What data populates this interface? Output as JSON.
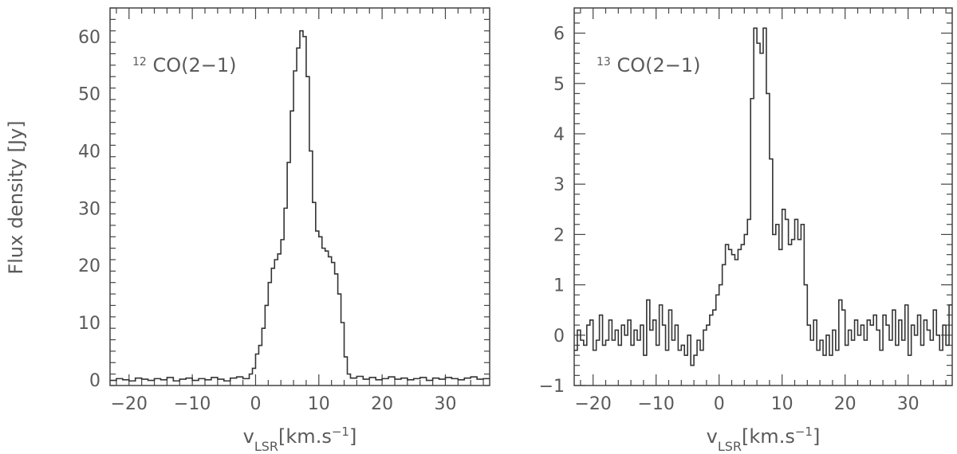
{
  "chart_data": [
    {
      "type": "line",
      "step": true,
      "label": "CO(2−1)",
      "label_sup": "12",
      "ylabel": "Flux density [Jy]",
      "xlabel_main": "v",
      "xlabel_sub": "LSR",
      "xlabel_units": "[km.s",
      "xlabel_units_sup": "−1",
      "xlabel_units_end": "]",
      "xlim": [
        -23,
        37
      ],
      "ylim": [
        -1,
        65
      ],
      "xticks": [
        -20,
        -10,
        0,
        10,
        20,
        30
      ],
      "xtick_labels": [
        "−20",
        "−10",
        "0",
        "10",
        "20",
        "30"
      ],
      "yticks": [
        0,
        10,
        20,
        30,
        40,
        50,
        60
      ],
      "ytick_labels": [
        "0",
        "10",
        "20",
        "30",
        "40",
        "50",
        "60"
      ],
      "series": [
        {
          "x": [
            -23,
            -22,
            -21,
            -20,
            -19,
            -18,
            -17,
            -16,
            -15,
            -14,
            -13,
            -12,
            -11,
            -10,
            -9,
            -8,
            -7,
            -6,
            -5,
            -4,
            -3,
            -2,
            -1,
            -0.5,
            0,
            0.5,
            1,
            1.5,
            2,
            2.5,
            3,
            3.5,
            4,
            4.5,
            5,
            5.5,
            6,
            6.5,
            7,
            7.5,
            8,
            8.5,
            9,
            9.5,
            10,
            10.5,
            11,
            11.5,
            12,
            12.5,
            13,
            13.5,
            14,
            14.5,
            15,
            16,
            17,
            18,
            19,
            20,
            21,
            22,
            23,
            24,
            25,
            26,
            27,
            28,
            29,
            30,
            31,
            32,
            33,
            34,
            35,
            36
          ],
          "y": [
            -0.1,
            0.2,
            0.0,
            -0.2,
            0.3,
            0.1,
            -0.1,
            0.2,
            0.0,
            0.4,
            -0.2,
            0.1,
            0.3,
            -0.1,
            0.2,
            0.0,
            0.4,
            0.1,
            -0.2,
            0.3,
            0.5,
            0.2,
            1.0,
            2.0,
            4.5,
            6.0,
            9.0,
            13.0,
            17.0,
            19.5,
            21.0,
            22.0,
            24.5,
            30.0,
            38.0,
            47.0,
            54.0,
            58.0,
            61.0,
            60.0,
            53.0,
            40.0,
            31.0,
            26.0,
            25.0,
            23.0,
            22.5,
            21.5,
            20.5,
            18.5,
            15.0,
            10.0,
            4.0,
            1.0,
            0.3,
            0.6,
            0.1,
            0.4,
            0.0,
            0.2,
            0.5,
            0.1,
            0.3,
            0.0,
            0.2,
            0.4,
            -0.1,
            0.3,
            0.1,
            0.4,
            0.2,
            0.0,
            0.3,
            0.5,
            0.1,
            0.2
          ]
        }
      ]
    },
    {
      "type": "line",
      "step": true,
      "label": "CO(2−1)",
      "label_sup": "13",
      "xlabel_main": "v",
      "xlabel_sub": "LSR",
      "xlabel_units": "[km.s",
      "xlabel_units_sup": "−1",
      "xlabel_units_end": "]",
      "xlim": [
        -23,
        37
      ],
      "ylim": [
        -1,
        6.5
      ],
      "xticks": [
        -20,
        -10,
        0,
        10,
        20,
        30
      ],
      "xtick_labels": [
        "−20",
        "−10",
        "0",
        "10",
        "20",
        "30"
      ],
      "yticks": [
        -1,
        0,
        1,
        2,
        3,
        4,
        5,
        6
      ],
      "ytick_labels": [
        "−1",
        "0",
        "1",
        "2",
        "3",
        "4",
        "5",
        "6"
      ],
      "series": [
        {
          "x": [
            -23,
            -22.5,
            -22,
            -21.5,
            -21,
            -20.5,
            -20,
            -19.5,
            -19,
            -18.5,
            -18,
            -17.5,
            -17,
            -16.5,
            -16,
            -15.5,
            -15,
            -14.5,
            -14,
            -13.5,
            -13,
            -12.5,
            -12,
            -11.5,
            -11,
            -10.5,
            -10,
            -9.5,
            -9,
            -8.5,
            -8,
            -7.5,
            -7,
            -6.5,
            -6,
            -5.5,
            -5,
            -4.5,
            -4,
            -3.5,
            -3,
            -2.5,
            -2,
            -1.5,
            -1,
            -0.5,
            0,
            0.5,
            1,
            1.5,
            2,
            2.5,
            3,
            3.5,
            4,
            4.5,
            5,
            5.5,
            6,
            6.5,
            7,
            7.5,
            8,
            8.5,
            9,
            9.5,
            10,
            10.5,
            11,
            11.5,
            12,
            12.5,
            13,
            13.5,
            14,
            14.5,
            15,
            15.5,
            16,
            16.5,
            17,
            17.5,
            18,
            18.5,
            19,
            19.5,
            20,
            20.5,
            21,
            21.5,
            22,
            22.5,
            23,
            23.5,
            24,
            24.5,
            25,
            25.5,
            26,
            26.5,
            27,
            27.5,
            28,
            28.5,
            29,
            29.5,
            30,
            30.5,
            31,
            31.5,
            32,
            32.5,
            33,
            33.5,
            34,
            34.5,
            35,
            35.5,
            36,
            36.5
          ],
          "y": [
            -0.3,
            0.1,
            -0.1,
            -0.2,
            0.2,
            0.3,
            -0.3,
            -0.1,
            0.4,
            -0.2,
            -0.1,
            0.3,
            -0.1,
            0.1,
            -0.2,
            0.2,
            0.0,
            0.3,
            -0.2,
            0.1,
            -0.1,
            0.2,
            -0.4,
            0.7,
            0.1,
            0.3,
            -0.2,
            0.6,
            0.2,
            -0.3,
            0.5,
            -0.1,
            0.2,
            -0.3,
            -0.2,
            -0.4,
            0.0,
            -0.6,
            -0.4,
            -0.1,
            -0.3,
            0.1,
            0.2,
            0.4,
            0.5,
            0.8,
            1.0,
            1.4,
            1.8,
            1.7,
            1.6,
            1.5,
            1.7,
            1.8,
            2.0,
            2.3,
            4.7,
            6.1,
            5.8,
            5.6,
            6.1,
            4.8,
            3.5,
            2.0,
            2.2,
            1.7,
            2.5,
            2.3,
            1.8,
            1.9,
            2.3,
            1.9,
            2.2,
            1.0,
            0.2,
            -0.1,
            0.3,
            -0.3,
            -0.1,
            -0.4,
            0.0,
            -0.4,
            0.1,
            -0.3,
            0.7,
            0.5,
            -0.2,
            0.1,
            -0.1,
            0.3,
            0.0,
            0.2,
            -0.1,
            0.3,
            0.2,
            0.4,
            0.1,
            -0.3,
            0.4,
            0.2,
            -0.1,
            0.5,
            -0.2,
            0.3,
            -0.1,
            0.6,
            -0.4,
            0.2,
            0.0,
            0.4,
            -0.2,
            0.3,
            0.1,
            -0.1,
            0.5,
            0.0,
            -0.3,
            0.2,
            -0.2,
            0.6
          ]
        }
      ]
    }
  ]
}
